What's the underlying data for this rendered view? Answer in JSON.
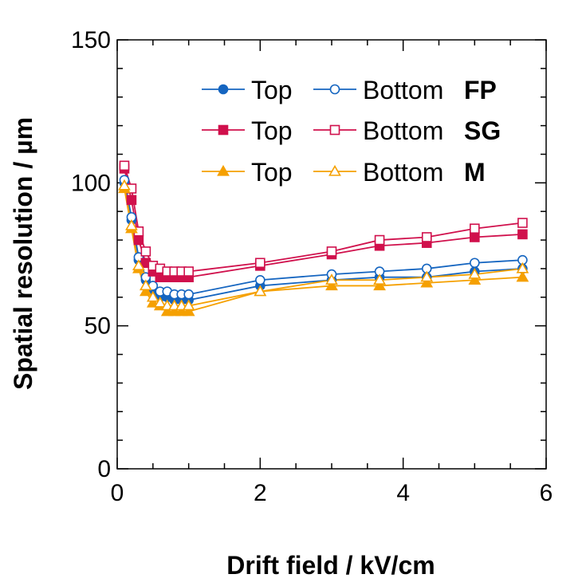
{
  "chart_data": {
    "type": "line",
    "xlabel": "Drift field / kV/cm",
    "ylabel": "Spatial resolution / µm",
    "xlim": [
      0,
      6
    ],
    "ylim": [
      0,
      150
    ],
    "x_ticks": [
      "0",
      "2",
      "4",
      "6"
    ],
    "y_ticks": [
      "0",
      "50",
      "100",
      "150"
    ],
    "x": [
      0.1,
      0.2,
      0.3,
      0.4,
      0.5,
      0.6,
      0.7,
      0.8,
      0.9,
      1.0,
      2.0,
      3.0,
      3.67,
      4.33,
      5.0,
      5.67
    ],
    "series": [
      {
        "name": "Top",
        "group": "FP",
        "position": "Top",
        "color": "#1565c0",
        "marker": "circle",
        "filled": true,
        "values": [
          100,
          87,
          73,
          66,
          62,
          60,
          60,
          59,
          59,
          59,
          64,
          66,
          67,
          67,
          69,
          70
        ]
      },
      {
        "name": "Bottom",
        "group": "FP",
        "position": "Bottom",
        "color": "#1565c0",
        "marker": "circle",
        "filled": false,
        "values": [
          101,
          88,
          74,
          67,
          64,
          62,
          62,
          61,
          61,
          61,
          66,
          68,
          69,
          70,
          72,
          73
        ]
      },
      {
        "name": "Top",
        "group": "SG",
        "position": "Top",
        "color": "#d0104c",
        "marker": "square",
        "filled": true,
        "values": [
          105,
          94,
          80,
          72,
          69,
          67,
          67,
          67,
          67,
          67,
          71,
          75,
          78,
          79,
          81,
          82
        ]
      },
      {
        "name": "Bottom",
        "group": "SG",
        "position": "Bottom",
        "color": "#d0104c",
        "marker": "square",
        "filled": false,
        "values": [
          106,
          98,
          83,
          76,
          71,
          70,
          69,
          69,
          69,
          69,
          72,
          76,
          80,
          81,
          84,
          86
        ]
      },
      {
        "name": "Top",
        "group": "M",
        "position": "Top",
        "color": "#f5a000",
        "marker": "triangle",
        "filled": true,
        "values": [
          98,
          84,
          70,
          62,
          58,
          57,
          55,
          55,
          55,
          55,
          62,
          64,
          64,
          65,
          66,
          67
        ]
      },
      {
        "name": "Bottom",
        "group": "M",
        "position": "Bottom",
        "color": "#f5a000",
        "marker": "triangle",
        "filled": false,
        "values": [
          99,
          85,
          71,
          64,
          60,
          58,
          57,
          57,
          57,
          57,
          62,
          66,
          66,
          67,
          68,
          70
        ]
      }
    ],
    "legend": {
      "placement": "top-right",
      "rows": [
        {
          "top_label": "Top",
          "bottom_label": "Bottom",
          "group_label": "FP",
          "color": "#1565c0",
          "marker": "circle"
        },
        {
          "top_label": "Top",
          "bottom_label": "Bottom",
          "group_label": "SG",
          "color": "#d0104c",
          "marker": "square"
        },
        {
          "top_label": "Top",
          "bottom_label": "Bottom",
          "group_label": "M",
          "color": "#f5a000",
          "marker": "triangle"
        }
      ]
    },
    "grid": false
  }
}
